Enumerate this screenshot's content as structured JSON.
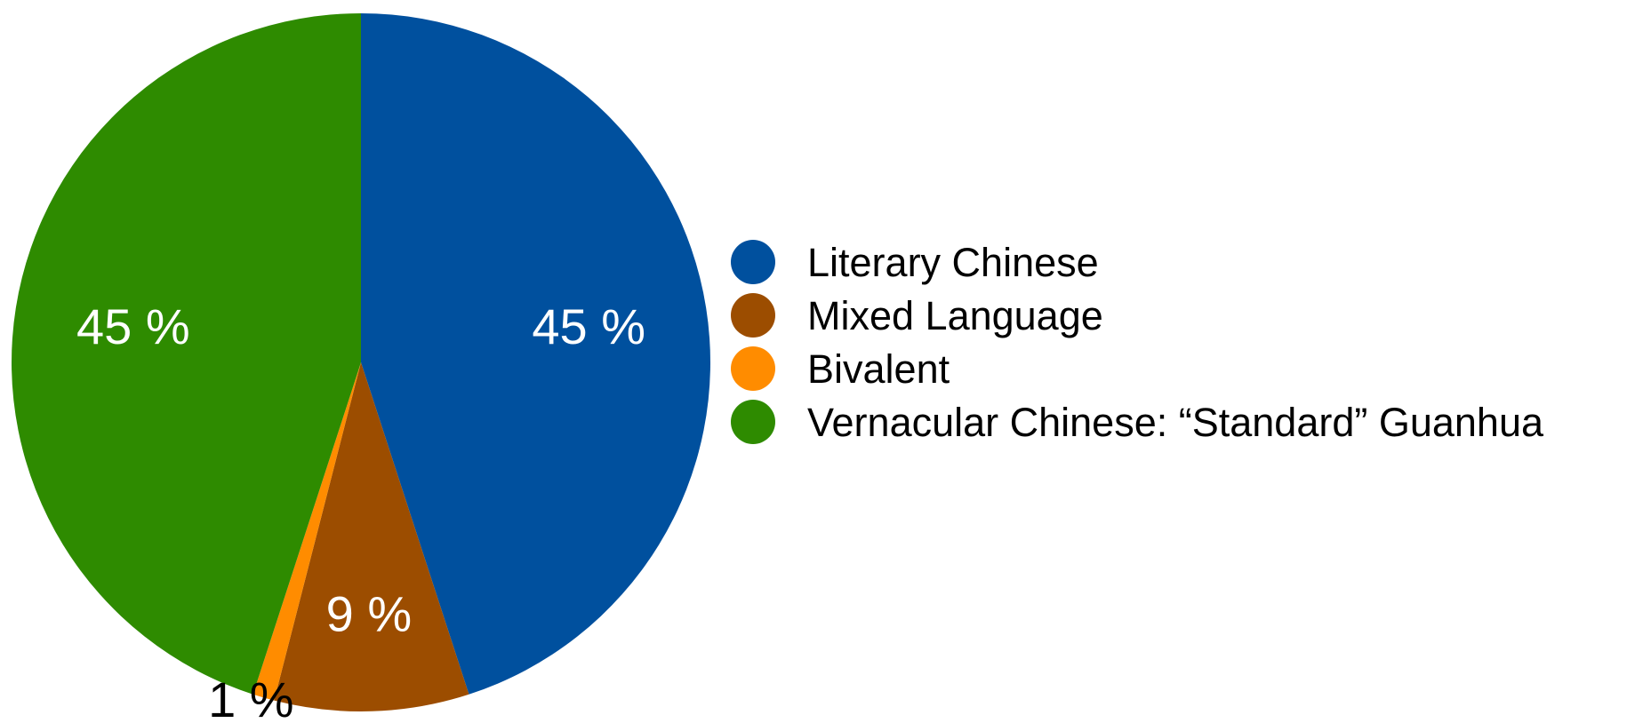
{
  "chart_data": {
    "type": "pie",
    "title": "",
    "start_angle_deg": 0,
    "direction": "clockwise",
    "legend_position": "right",
    "slices": [
      {
        "name": "Literary Chinese",
        "value": 45,
        "label": "45 %",
        "color": "#00509e",
        "label_color": "#ffffff"
      },
      {
        "name": "Mixed Language",
        "value": 9,
        "label": "9 %",
        "color": "#9c4d00",
        "label_color": "#ffffff"
      },
      {
        "name": "Bivalent",
        "value": 1,
        "label": "1 %",
        "color": "#ff8c00",
        "label_color": "#000000"
      },
      {
        "name": "Vernacular Chinese: “Standard” Guanhua",
        "value": 45,
        "label": "45 %",
        "color": "#2e8b00",
        "label_color": "#ffffff"
      }
    ]
  }
}
